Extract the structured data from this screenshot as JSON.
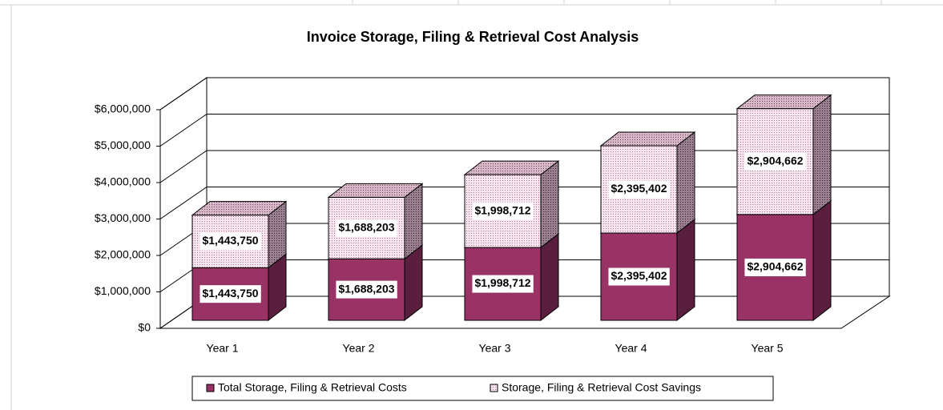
{
  "chart_data": {
    "type": "bar3d_stacked",
    "title": "Invoice Storage, Filing & Retrieval Cost Analysis",
    "categories": [
      "Year 1",
      "Year 2",
      "Year 3",
      "Year 4",
      "Year 5"
    ],
    "series": [
      {
        "name": "Total Storage, Filing & Retrieval Costs",
        "color": "#993366",
        "values": [
          1443750,
          1688203,
          1998712,
          2395402,
          2904662
        ],
        "value_labels": [
          "$1,443,750",
          "$1,688,203",
          "$1,998,712",
          "$2,395,402",
          "$2,904,662"
        ]
      },
      {
        "name": "Storage, Filing & Retrieval Cost Savings",
        "color": "#f3dbe8",
        "values": [
          1443750,
          1688203,
          1998712,
          2395402,
          2904662
        ],
        "value_labels": [
          "$1,443,750",
          "$1,688,203",
          "$1,998,712",
          "$2,395,402",
          "$2,904,662"
        ]
      }
    ],
    "ylim": [
      0,
      6000000
    ],
    "yticks": [
      {
        "value": 0,
        "label": "$0"
      },
      {
        "value": 1000000,
        "label": "$1,000,000"
      },
      {
        "value": 2000000,
        "label": "$2,000,000"
      },
      {
        "value": 3000000,
        "label": "$3,000,000"
      },
      {
        "value": 4000000,
        "label": "$4,000,000"
      },
      {
        "value": 5000000,
        "label": "$5,000,000"
      },
      {
        "value": 6000000,
        "label": "$6,000,000"
      }
    ],
    "grid": true,
    "legend": "bottom"
  }
}
